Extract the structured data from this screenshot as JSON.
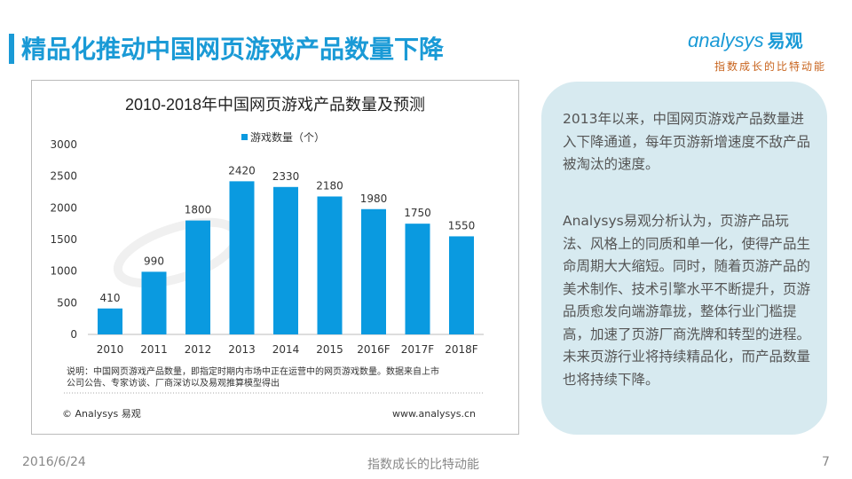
{
  "header": {
    "title": "精品化推动中国网页游戏产品数量下降",
    "logo_en": "nalysys",
    "logo_cn": "易观",
    "slogan": "指数成长的比特动能"
  },
  "chart_data": {
    "type": "bar",
    "title": "2010-2018年中国网页游戏产品数量及预测",
    "legend": "游戏数量（个）",
    "legend_position": "top-left",
    "categories": [
      "2010",
      "2011",
      "2012",
      "2013",
      "2014",
      "2015",
      "2016F",
      "2017F",
      "2018F"
    ],
    "values": [
      410,
      990,
      1800,
      2420,
      2330,
      2180,
      1980,
      1750,
      1550
    ],
    "ylim": [
      0,
      3000
    ],
    "yticks": [
      "0",
      "500",
      "1000",
      "1500",
      "2000",
      "2500",
      "3000"
    ],
    "color": "#0a9ae0",
    "note": "说明：中国网页游戏产品数量，即指定时期内市场中正在运营中的网页游戏数量。数据来自上市公司公告、专家访谈、厂商深访以及易观推算模型得出",
    "source": "© Analysys 易观",
    "url": "www.analysys.cn"
  },
  "panel": {
    "p1": "2013年以来，中国网页游戏产品数量进入下降通道，每年页游新增速度不敌产品被淘汰的速度。",
    "p2": "Analysys易观分析认为，页游产品玩法、风格上的同质和单一化，使得产品生命周期大大缩短。同时，随着页游产品的美术制作、技术引擎水平不断提升，页游品质愈发向端游靠拢，整体行业门槛提高，加速了页游厂商洗牌和转型的进程。未来页游行业将持续精品化，而产品数量也将持续下降。"
  },
  "footer": {
    "date": "2016/6/24",
    "slogan": "指数成长的比特动能",
    "page": "7"
  }
}
